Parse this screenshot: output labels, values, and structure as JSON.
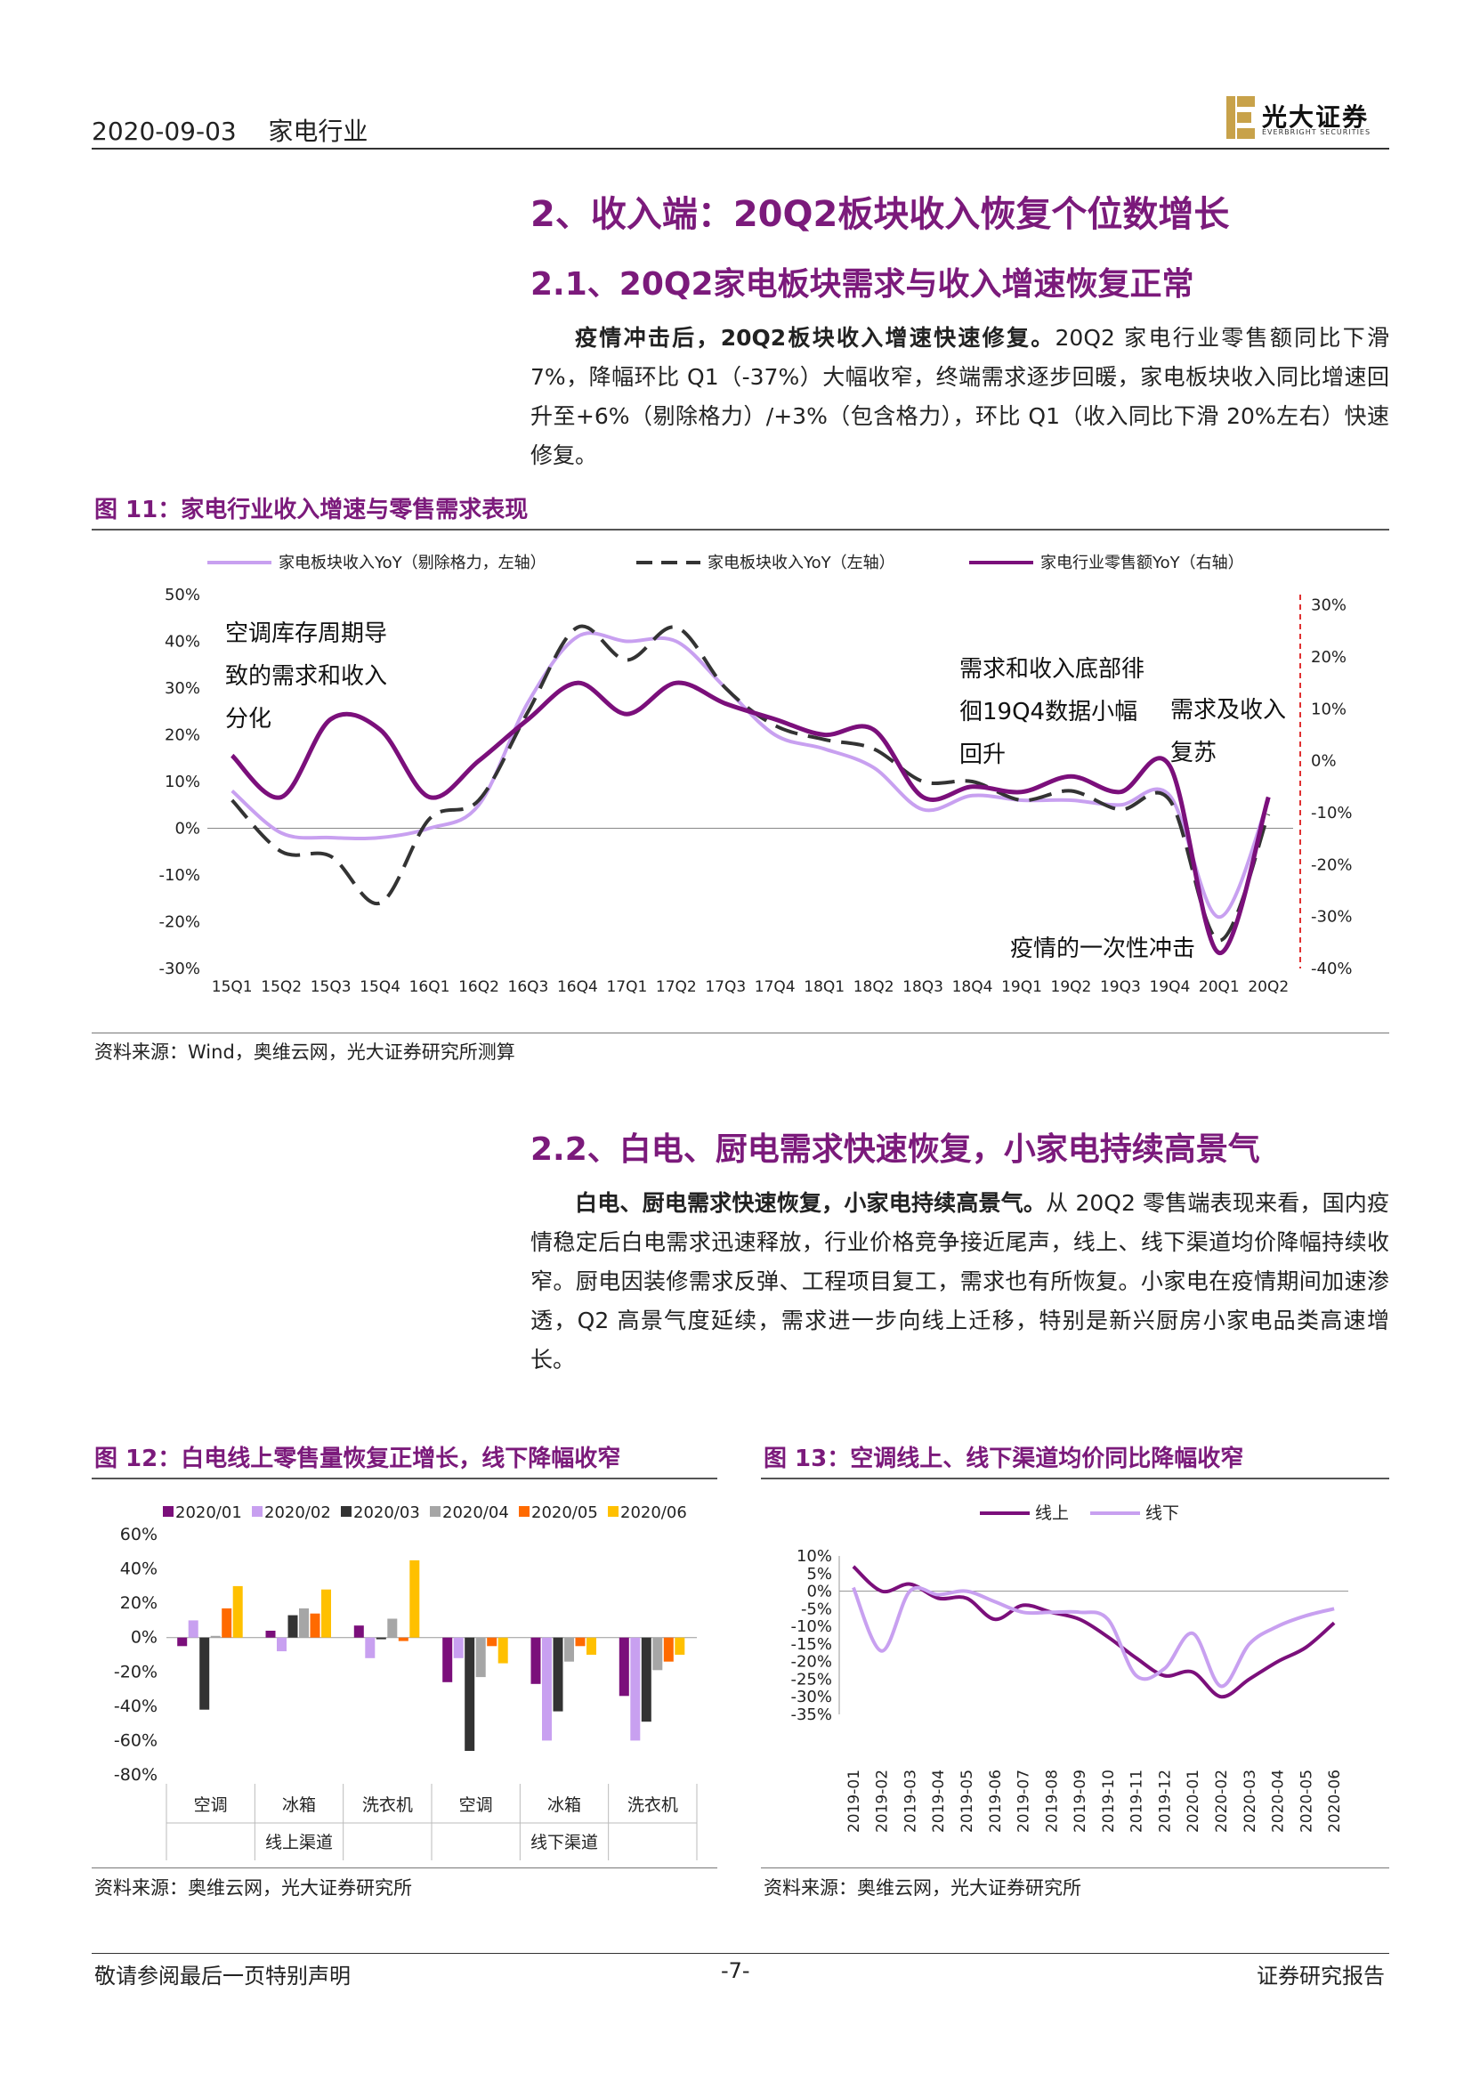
{
  "header": {
    "date": "2020-09-03",
    "industry": "家电行业",
    "logo_cn": "光大证券",
    "logo_en": "EVERBRIGHT SECURITIES"
  },
  "section2": {
    "title": "2、收入端：20Q2板块收入恢复个位数增长"
  },
  "section21": {
    "title": "2.1、20Q2家电板块需求与收入增速恢复正常",
    "para_bold": "疫情冲击后，20Q2板块收入增速快速修复。",
    "para_rest": "20Q2 家电行业零售额同比下滑 7%，降幅环比 Q1（-37%）大幅收窄，终端需求逐步回暖，家电板块收入同比增速回升至+6%（剔除格力）/+3%（包含格力），环比 Q1（收入同比下滑 20%左右）快速修复。"
  },
  "fig11": {
    "title": "图 11：家电行业收入增速与零售需求表现",
    "source": "资料来源：Wind，奥维云网，光大证券研究所测算",
    "annotations": [
      "空调库存周期导",
      "致的需求和收入",
      "分化",
      "需求和收入底部徘",
      "徊19Q4数据小幅",
      "回升",
      "需求及收入",
      "复苏",
      "疫情的一次性冲击"
    ]
  },
  "section22": {
    "title": "2.2、白电、厨电需求快速恢复，小家电持续高景气",
    "para_bold": "白电、厨电需求快速恢复，小家电持续高景气。",
    "para_rest": "从 20Q2 零售端表现来看，国内疫情稳定后白电需求迅速释放，行业价格竞争接近尾声，线上、线下渠道均价降幅持续收窄。厨电因装修需求反弹、工程项目复工，需求也有所恢复。小家电在疫情期间加速渗透，Q2 高景气度延续，需求进一步向线上迁移，特别是新兴厨房小家电品类高速增长。"
  },
  "fig12": {
    "title": "图 12：白电线上零售量恢复正增长，线下降幅收窄",
    "source": "资料来源：奥维云网，光大证券研究所"
  },
  "fig13": {
    "title": "图 13：空调线上、线下渠道均价同比降幅收窄",
    "source": "资料来源：奥维云网，光大证券研究所"
  },
  "footer": {
    "left": "敬请参阅最后一页特别声明",
    "page": "-7-",
    "right": "证券研究报告"
  },
  "chart_data": [
    {
      "type": "line",
      "x": [
        "15Q1",
        "15Q2",
        "15Q3",
        "15Q4",
        "16Q1",
        "16Q2",
        "16Q3",
        "16Q4",
        "17Q1",
        "17Q2",
        "17Q3",
        "17Q4",
        "18Q1",
        "18Q2",
        "18Q3",
        "18Q4",
        "19Q1",
        "19Q2",
        "19Q3",
        "19Q4",
        "20Q1",
        "20Q2"
      ],
      "yticks": [
        "50%",
        "40%",
        "30%",
        "20%",
        "10%",
        "0%",
        "-10%",
        "-20%",
        "-30%"
      ],
      "ylim": [
        -30,
        50
      ],
      "y2ticks": [
        "30%",
        "20%",
        "10%",
        "0%",
        "-10%",
        "-20%",
        "-30%",
        "-40%"
      ],
      "y2lim": [
        -40,
        32
      ],
      "legend": "top",
      "series": [
        {
          "name": "家电板块收入YoY（剔除格力，左轴）",
          "axis": "left",
          "color": "#c8a0f0",
          "values": [
            8,
            -1,
            -2,
            -2,
            0,
            5,
            27,
            41,
            40,
            40,
            30,
            20,
            17,
            13,
            4,
            7,
            6,
            6,
            5,
            7,
            -19,
            6
          ]
        },
        {
          "name": "家电板块收入YoY（左轴）",
          "axis": "left",
          "color": "#333333",
          "dash": true,
          "values": [
            6,
            -5,
            -6,
            -16,
            2,
            6,
            25,
            43,
            36,
            43,
            30,
            22,
            19,
            17,
            10,
            10,
            6,
            8,
            4,
            6,
            -24,
            3
          ]
        },
        {
          "name": "家电行业零售额YoY（右轴）",
          "axis": "right",
          "color": "#7b0f7b",
          "values": [
            1,
            -7,
            8,
            6,
            -7,
            0,
            8,
            15,
            9,
            15,
            11,
            8,
            5,
            6,
            -7,
            -5,
            -6,
            -3,
            -6,
            -1,
            -37,
            -7
          ]
        }
      ]
    },
    {
      "type": "bar",
      "groups": [
        "线上渠道",
        "线下渠道"
      ],
      "categories": [
        "空调",
        "冰箱",
        "洗衣机",
        "空调",
        "冰箱",
        "洗衣机"
      ],
      "yticks": [
        "60%",
        "40%",
        "20%",
        "0%",
        "-20%",
        "-40%",
        "-60%",
        "-80%"
      ],
      "ylim": [
        -80,
        60
      ],
      "legend": "top",
      "series": [
        {
          "name": "2020/01",
          "color": "#7b0f7b",
          "values": [
            -5,
            4,
            7,
            -26,
            -27,
            -34
          ]
        },
        {
          "name": "2020/02",
          "color": "#c8a0f0",
          "values": [
            10,
            -8,
            -12,
            -12,
            -60,
            -60
          ]
        },
        {
          "name": "2020/03",
          "color": "#333333",
          "values": [
            -42,
            13,
            -1,
            -66,
            -43,
            -49
          ]
        },
        {
          "name": "2020/04",
          "color": "#a6a6a6",
          "values": [
            1,
            17,
            11,
            -23,
            -14,
            -19
          ]
        },
        {
          "name": "2020/05",
          "color": "#ff6a00",
          "values": [
            17,
            14,
            -2,
            -5,
            -5,
            -14
          ]
        },
        {
          "name": "2020/06",
          "color": "#ffc000",
          "values": [
            30,
            28,
            45,
            -15,
            -10,
            -10
          ]
        }
      ]
    },
    {
      "type": "line",
      "x": [
        "2019-01",
        "2019-02",
        "2019-03",
        "2019-04",
        "2019-05",
        "2019-06",
        "2019-07",
        "2019-08",
        "2019-09",
        "2019-10",
        "2019-11",
        "2019-12",
        "2020-01",
        "2020-02",
        "2020-03",
        "2020-04",
        "2020-05",
        "2020-06"
      ],
      "yticks": [
        "10%",
        "5%",
        "0%",
        "-5%",
        "-10%",
        "-15%",
        "-20%",
        "-25%",
        "-30%",
        "-35%"
      ],
      "ylim": [
        -35,
        10
      ],
      "legend": "top",
      "series": [
        {
          "name": "线上",
          "color": "#7b0f7b",
          "values": [
            7,
            0,
            2,
            -2,
            -2,
            -8,
            -4,
            -6,
            -8,
            -13,
            -19,
            -24,
            -23,
            -30,
            -25,
            -20,
            -16,
            -9
          ]
        },
        {
          "name": "线下",
          "color": "#c8a0f0",
          "values": [
            1,
            -17,
            0,
            -1,
            0,
            -3,
            -6,
            -6,
            -6,
            -8,
            -24,
            -22,
            -12,
            -27,
            -15,
            -10,
            -7,
            -5
          ]
        }
      ]
    }
  ]
}
